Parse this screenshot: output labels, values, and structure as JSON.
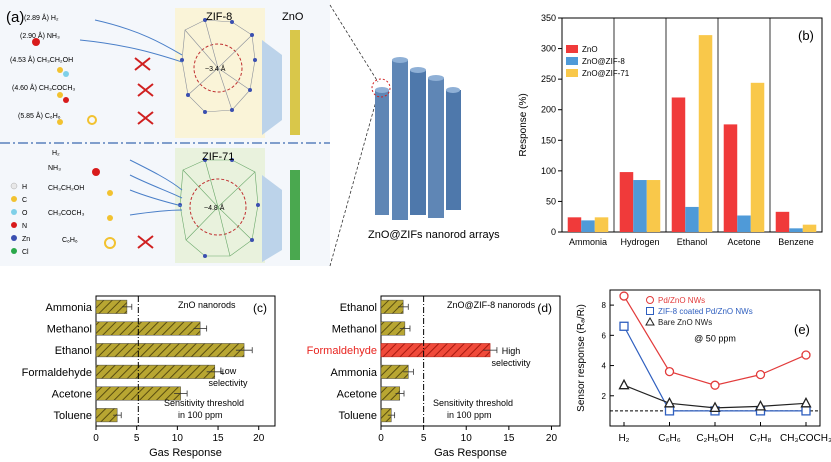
{
  "panel_a": {
    "label": "(a)",
    "top_frameworks": [
      "ZIF-8",
      "ZnO"
    ],
    "bottom_framework": "ZIF-71",
    "top_molecules": [
      "(2.89 Å) H₂",
      "(2.90 Å) NH₃",
      "(4.53 Å) CH₃CH₂OH",
      "(4.60 Å) CH₃COCH₃",
      "(5.85 Å) C₆H₆"
    ],
    "bottom_molecules": [
      "H₂",
      "NH₃",
      "CH₃CH₂OH",
      "CH₃COCH₃",
      "C₆H₆"
    ],
    "pore_top": "~3.4 Å",
    "pore_bottom": "~4.8 Å",
    "element_legend": [
      {
        "symbol": "H",
        "color": "#e8e8e8"
      },
      {
        "symbol": "C",
        "color": "#f2c230"
      },
      {
        "symbol": "O",
        "color": "#7fd0e8"
      },
      {
        "symbol": "N",
        "color": "#d81b1b"
      },
      {
        "symbol": "Zn",
        "color": "#3a4fb0"
      },
      {
        "symbol": "Cl",
        "color": "#2aa84a"
      }
    ],
    "nanorod_caption": "ZnO@ZIFs nanorod arrays"
  },
  "chart_data": [
    {
      "id": "b",
      "label": "(b)",
      "type": "bar",
      "categories": [
        "Ammonia",
        "Hydrogen",
        "Ethanol",
        "Acetone",
        "Benzene"
      ],
      "series": [
        {
          "name": "ZnO",
          "color": "#f03a3a",
          "values": [
            24,
            98,
            220,
            176,
            33
          ]
        },
        {
          "name": "ZnO@ZIF-8",
          "color": "#4f9ad8",
          "values": [
            19,
            85,
            41,
            27,
            6
          ]
        },
        {
          "name": "ZnO@ZIF-71",
          "color": "#f9c84a",
          "values": [
            24,
            85,
            322,
            244,
            12
          ]
        }
      ],
      "ylabel": "Response (%)",
      "ylim": [
        0,
        350
      ],
      "yticks": [
        "0",
        "50",
        "100",
        "150",
        "200",
        "250",
        "300",
        "350"
      ],
      "legend_position": "top-left"
    },
    {
      "id": "c",
      "label": "(c)",
      "type": "bar",
      "orientation": "horizontal",
      "categories": [
        "Ammonia",
        "Methanol",
        "Ethanol",
        "Formaldehyde",
        "Acetone",
        "Toluene"
      ],
      "values": [
        3.8,
        12.8,
        18.2,
        14.6,
        10.4,
        2.6
      ],
      "errors": [
        0.6,
        0.8,
        1.0,
        1.0,
        0.8,
        0.5
      ],
      "xlabel": "Gas Response",
      "xlim": [
        0,
        22
      ],
      "xticks": [
        "0",
        "5",
        "10",
        "15",
        "20"
      ],
      "threshold": 5.2,
      "annotations": [
        "ZnO nanorods",
        "Low",
        "selectivity",
        "Sensitivity threshold",
        "in 100 ppm"
      ]
    },
    {
      "id": "d",
      "label": "(d)",
      "type": "bar",
      "orientation": "horizontal",
      "categories": [
        "Ethanol",
        "Methanol",
        "Formaldehyde",
        "Ammonia",
        "Acetone",
        "Toluene"
      ],
      "values": [
        2.6,
        2.8,
        12.8,
        3.2,
        2.2,
        1.2
      ],
      "errors": [
        0.6,
        0.6,
        0.8,
        0.6,
        0.5,
        0.4
      ],
      "highlight": "Formaldehyde",
      "xlabel": "Gas Response",
      "xlim": [
        0,
        21
      ],
      "xticks": [
        "0",
        "5",
        "10",
        "15",
        "20"
      ],
      "threshold": 5.0,
      "annotations": [
        "ZnO@ZIF-8 nanorods",
        "High",
        "selectivity",
        "Sensitivity threshold",
        "in 100 ppm"
      ]
    },
    {
      "id": "e",
      "label": "(e)",
      "type": "line",
      "categories": [
        "H₂",
        "C₆H₆",
        "C₂H₅OH",
        "C₇H₈",
        "CH₃COCH₃"
      ],
      "series": [
        {
          "name": "Pd/ZnO NWs",
          "color": "#e23b3b",
          "marker": "circle",
          "values": [
            8.6,
            3.6,
            2.7,
            3.4,
            4.7
          ]
        },
        {
          "name": "ZIF-8 coated Pd/ZnO NWs",
          "color": "#2f5fbf",
          "marker": "square",
          "values": [
            6.6,
            1.0,
            1.0,
            1.0,
            1.0
          ]
        },
        {
          "name": "Bare ZnO NWs",
          "color": "#222222",
          "marker": "triangle",
          "values": [
            2.7,
            1.5,
            1.2,
            1.3,
            1.5
          ]
        }
      ],
      "ylabel": "Sensor response (Rₐ/Rₗ)",
      "ylim": [
        0,
        9
      ],
      "yticks": [
        "2",
        "4",
        "6",
        "8"
      ],
      "baseline": 1,
      "annotation": "@ 50 ppm",
      "legend_position": "top-right"
    }
  ]
}
